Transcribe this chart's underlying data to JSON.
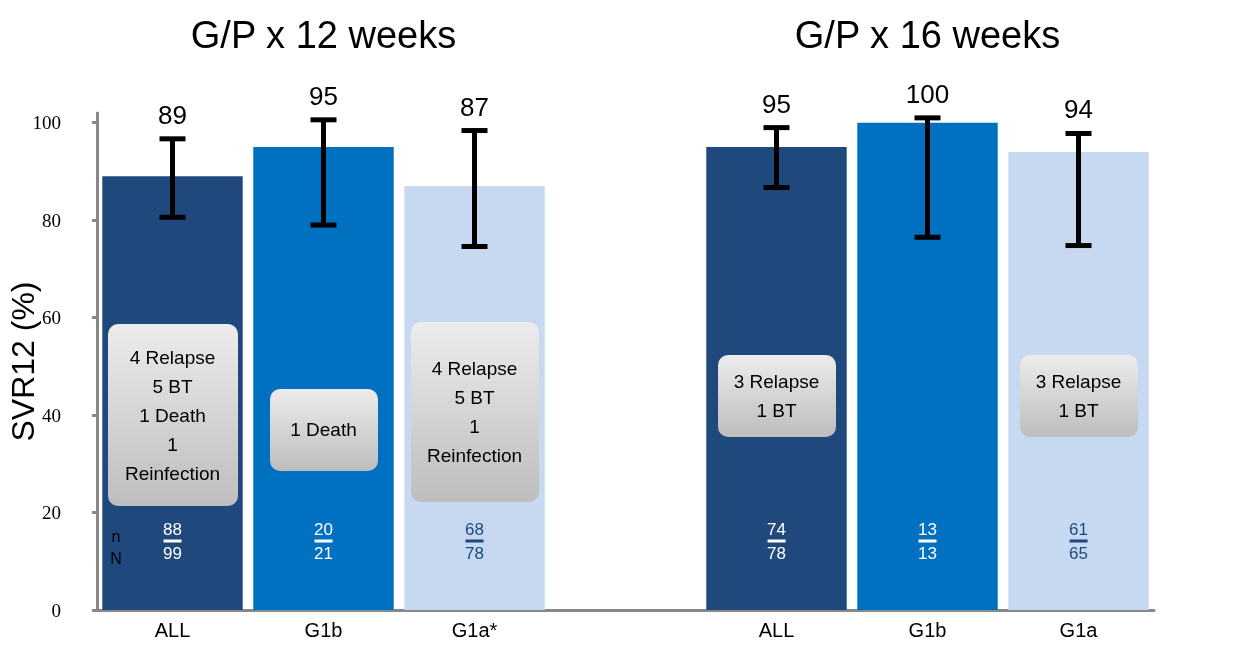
{
  "chart_data": {
    "type": "bar",
    "ylabel": "SVR12 (%)",
    "categories": [
      "ALL",
      "G1b",
      "G1a*",
      null,
      "ALL",
      "G1b",
      "G1a"
    ],
    "values": [
      89,
      95,
      87,
      null,
      95,
      100,
      94
    ],
    "colors": [
      "#1f497d",
      "#0070c0",
      "#c6d9f0",
      "#ffffff",
      "#1f497d",
      "#0070c0",
      "#c6d9f0"
    ],
    "errors": [
      [
        80.6,
        96.7
      ],
      [
        79,
        100.6
      ],
      [
        74.6,
        98.4
      ],
      null,
      [
        86.7,
        99
      ],
      [
        76.5,
        101
      ],
      [
        74.8,
        97.8
      ]
    ],
    "data_labels": true,
    "ylim": [
      0,
      102
    ],
    "yticks": [
      0,
      20,
      40,
      60,
      80,
      100
    ],
    "grid": false,
    "annotations": [
      "G/P x 12 weeks",
      "G/P x 16 weeks",
      "4 Relapse\n5 BT\n1 Death\n1\nReinfection",
      "1 Death",
      "4 Relapse\n5 BT\n1\nReinfection",
      "3 Relapse\n1 BT",
      "3 Relapse\n1 BT",
      "n",
      "N",
      "88",
      "99",
      "20",
      "21",
      "68",
      "78",
      "74",
      "78",
      "13",
      "13",
      "61",
      "65"
    ]
  }
}
